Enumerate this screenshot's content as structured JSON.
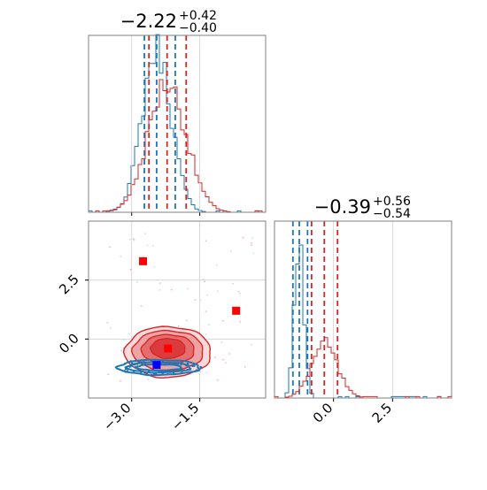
{
  "chart_data": [
    {
      "panel": "marginal-param1",
      "type": "histogram",
      "title": {
        "main": "−2.22",
        "sup": "+0.42",
        "sub": "−0.40"
      },
      "xlim": [
        -3.95,
        -0.05
      ],
      "series": [
        {
          "name": "",
          "color": "#1f77b4",
          "center": -2.45,
          "sigma": 0.32,
          "quantiles": [
            -2.72,
            -2.45,
            -2.04
          ],
          "peak": 0.92
        },
        {
          "name": "",
          "color": "#d62728",
          "center": -2.22,
          "sigma": 0.42,
          "quantiles": [
            -2.62,
            -2.22,
            -1.8
          ],
          "peak": 0.73
        }
      ]
    },
    {
      "panel": "marginal-param2",
      "type": "histogram",
      "title": {
        "main": "−0.39",
        "sup": "+0.56",
        "sub": "−0.54"
      },
      "xlim": [
        -2.5,
        5.0
      ],
      "xticks": [
        0.0,
        2.5
      ],
      "xtick_labels": [
        "0.0",
        "2.5"
      ],
      "series": [
        {
          "name": "",
          "color": "#1f77b4",
          "center": -1.45,
          "sigma": 0.2,
          "quantiles": [
            -1.72,
            -1.45,
            -1.1
          ],
          "peak": 0.88
        },
        {
          "name": "",
          "color": "#d62728",
          "center": -0.39,
          "sigma": 0.55,
          "quantiles": [
            -0.93,
            -0.39,
            0.17
          ],
          "peak": 0.3
        }
      ]
    },
    {
      "panel": "joint",
      "type": "scatter",
      "xlim": [
        -3.95,
        -0.05
      ],
      "ylim": [
        -2.5,
        5.0
      ],
      "xticks": [
        -3.0,
        -1.5
      ],
      "xtick_labels": [
        "−3.0",
        "−1.5"
      ],
      "yticks": [
        0.0,
        2.5
      ],
      "ytick_labels": [
        "0.0",
        "2.5"
      ],
      "grid": true,
      "contours": [
        {
          "name": "",
          "color": "#d62728",
          "cx": -2.2,
          "cy": -0.55,
          "rx": [
            0.95,
            0.78,
            0.58,
            0.38
          ],
          "ry": [
            1.08,
            0.86,
            0.64,
            0.42
          ]
        },
        {
          "name": "",
          "color": "#1f77b4",
          "cx": -2.4,
          "cy": -1.2,
          "rx": [
            0.9,
            0.7,
            0.5
          ],
          "ry": [
            0.32,
            0.22,
            0.13
          ]
        }
      ],
      "markers": [
        {
          "name": "",
          "color": "#ff0000",
          "x": -2.75,
          "y": 3.3
        },
        {
          "name": "",
          "color": "#ff0000",
          "x": -0.7,
          "y": 1.2
        },
        {
          "name": "",
          "color": "#ff0000",
          "x": -2.2,
          "y": -0.4
        },
        {
          "name": "",
          "color": "#0000ff",
          "x": -2.45,
          "y": -1.1
        }
      ]
    }
  ]
}
